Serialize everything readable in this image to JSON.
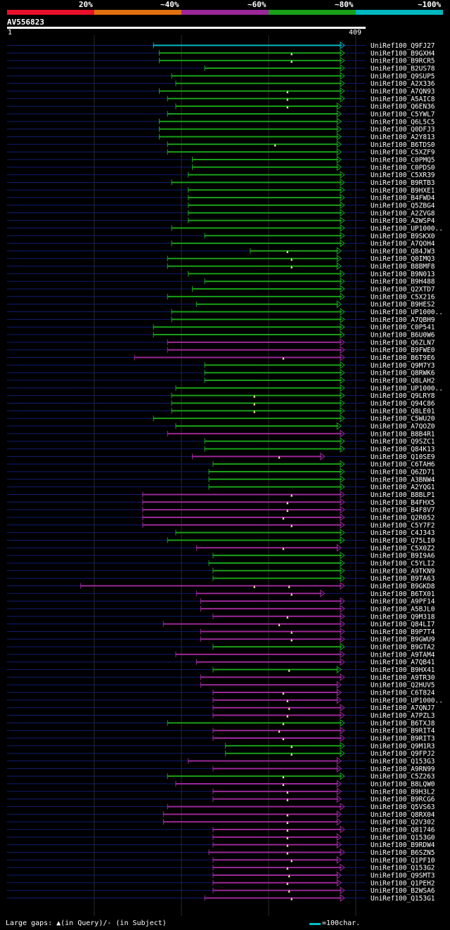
{
  "legend": {
    "labels": [
      "20%",
      "~40%",
      "~60%",
      "~80%",
      "~100%"
    ],
    "colors": [
      "#e8102a",
      "#e07010",
      "#9a2898",
      "#18a018",
      "#00b8c0"
    ]
  },
  "query": {
    "name": "AV556823",
    "start": "1",
    "end": "409"
  },
  "footer": {
    "gaps": "Large gaps: ▲(in Query)/- (in Subject)",
    "key": "=100char."
  },
  "hits": [
    {
      "name": "UniRef100_Q9FJ27",
      "s": 178,
      "e": 409,
      "c": 4,
      "m": []
    },
    {
      "name": "UniRef100_B9GXH4",
      "s": 185,
      "e": 409,
      "c": 3,
      "m": [
        345
      ]
    },
    {
      "name": "UniRef100_B9RCR5",
      "s": 185,
      "e": 409,
      "c": 3,
      "m": [
        345
      ]
    },
    {
      "name": "UniRef100_B2US78",
      "s": 240,
      "e": 409,
      "c": 3,
      "m": []
    },
    {
      "name": "UniRef100_Q9SUP5",
      "s": 200,
      "e": 409,
      "c": 3,
      "m": []
    },
    {
      "name": "UniRef100_A2X336",
      "s": 205,
      "e": 409,
      "c": 3,
      "m": []
    },
    {
      "name": "UniRef100_A7QN93",
      "s": 185,
      "e": 409,
      "c": 3,
      "m": [
        340
      ]
    },
    {
      "name": "UniRef100_A5AIC8",
      "s": 195,
      "e": 409,
      "c": 3,
      "m": [
        340
      ]
    },
    {
      "name": "UniRef100_Q6EN36",
      "s": 205,
      "e": 405,
      "c": 3,
      "m": [
        340
      ]
    },
    {
      "name": "UniRef100_C5YWL7",
      "s": 195,
      "e": 405,
      "c": 3,
      "m": []
    },
    {
      "name": "UniRef100_Q6L5C5",
      "s": 185,
      "e": 405,
      "c": 3,
      "m": []
    },
    {
      "name": "UniRef100_Q0DFJ3",
      "s": 185,
      "e": 405,
      "c": 3,
      "m": []
    },
    {
      "name": "UniRef100_A2Y813",
      "s": 185,
      "e": 405,
      "c": 3,
      "m": []
    },
    {
      "name": "UniRef100_B6TDS0",
      "s": 195,
      "e": 405,
      "c": 3,
      "m": [
        325
      ]
    },
    {
      "name": "UniRef100_C5XZF9",
      "s": 195,
      "e": 405,
      "c": 3,
      "m": []
    },
    {
      "name": "UniRef100_C0PMQ5",
      "s": 225,
      "e": 405,
      "c": 3,
      "m": []
    },
    {
      "name": "UniRef100_C0PDS0",
      "s": 225,
      "e": 405,
      "c": 3,
      "m": []
    },
    {
      "name": "UniRef100_C5XR39",
      "s": 220,
      "e": 409,
      "c": 3,
      "m": []
    },
    {
      "name": "UniRef100_B9RTB3",
      "s": 200,
      "e": 409,
      "c": 3,
      "m": []
    },
    {
      "name": "UniRef100_B9HXE1",
      "s": 220,
      "e": 409,
      "c": 3,
      "m": []
    },
    {
      "name": "UniRef100_B4FWD4",
      "s": 220,
      "e": 409,
      "c": 3,
      "m": []
    },
    {
      "name": "UniRef100_Q5ZBG4",
      "s": 220,
      "e": 409,
      "c": 3,
      "m": []
    },
    {
      "name": "UniRef100_A2ZVG8",
      "s": 220,
      "e": 409,
      "c": 3,
      "m": []
    },
    {
      "name": "UniRef100_A2WSP4",
      "s": 220,
      "e": 409,
      "c": 3,
      "m": []
    },
    {
      "name": "UniRef100_UP1000..",
      "s": 200,
      "e": 409,
      "c": 3,
      "m": []
    },
    {
      "name": "UniRef100_B9SKX0",
      "s": 240,
      "e": 409,
      "c": 3,
      "m": []
    },
    {
      "name": "UniRef100_A7QOH4",
      "s": 200,
      "e": 409,
      "c": 3,
      "m": []
    },
    {
      "name": "UniRef100_Q84JW3",
      "s": 295,
      "e": 405,
      "c": 3,
      "m": [
        340
      ]
    },
    {
      "name": "UniRef100_Q0IMQ3",
      "s": 195,
      "e": 405,
      "c": 3,
      "m": [
        345
      ]
    },
    {
      "name": "UniRef100_B8BMF8",
      "s": 195,
      "e": 405,
      "c": 3,
      "m": [
        345
      ]
    },
    {
      "name": "UniRef100_B9N013",
      "s": 220,
      "e": 409,
      "c": 3,
      "m": []
    },
    {
      "name": "UniRef100_B9H488",
      "s": 240,
      "e": 409,
      "c": 3,
      "m": []
    },
    {
      "name": "UniRef100_Q2XTD7",
      "s": 225,
      "e": 409,
      "c": 3,
      "m": []
    },
    {
      "name": "UniRef100_C5X216",
      "s": 195,
      "e": 409,
      "c": 3,
      "m": []
    },
    {
      "name": "UniRef100_B9HES2",
      "s": 230,
      "e": 405,
      "c": 3,
      "m": []
    },
    {
      "name": "UniRef100_UP1000..",
      "s": 200,
      "e": 409,
      "c": 3,
      "m": []
    },
    {
      "name": "UniRef100_A7QBH9",
      "s": 200,
      "e": 409,
      "c": 3,
      "m": []
    },
    {
      "name": "UniRef100_C0P541",
      "s": 178,
      "e": 409,
      "c": 3,
      "m": []
    },
    {
      "name": "UniRef100_B6U0W6",
      "s": 178,
      "e": 409,
      "c": 3,
      "m": []
    },
    {
      "name": "UniRef100_Q6ZLN7",
      "s": 195,
      "e": 409,
      "c": 2,
      "m": []
    },
    {
      "name": "UniRef100_B9FWE0",
      "s": 195,
      "e": 409,
      "c": 2,
      "m": []
    },
    {
      "name": "UniRef100_B6T9E6",
      "s": 155,
      "e": 409,
      "c": 2,
      "m": [
        335
      ]
    },
    {
      "name": "UniRef100_Q9M7Y3",
      "s": 240,
      "e": 409,
      "c": 3,
      "m": []
    },
    {
      "name": "UniRef100_Q8RWK6",
      "s": 240,
      "e": 409,
      "c": 3,
      "m": []
    },
    {
      "name": "UniRef100_Q8LAH2",
      "s": 240,
      "e": 409,
      "c": 3,
      "m": []
    },
    {
      "name": "UniRef100_UP1000..",
      "s": 205,
      "e": 409,
      "c": 3,
      "m": []
    },
    {
      "name": "UniRef100_Q9LRY8",
      "s": 200,
      "e": 409,
      "c": 3,
      "m": [
        300
      ]
    },
    {
      "name": "UniRef100_Q94C86",
      "s": 200,
      "e": 409,
      "c": 3,
      "m": [
        300
      ]
    },
    {
      "name": "UniRef100_Q8LE01",
      "s": 200,
      "e": 409,
      "c": 3,
      "m": [
        300
      ]
    },
    {
      "name": "UniRef100_C5WU20",
      "s": 178,
      "e": 409,
      "c": 3,
      "m": []
    },
    {
      "name": "UniRef100_A7QOZ0",
      "s": 205,
      "e": 405,
      "c": 3,
      "m": []
    },
    {
      "name": "UniRef100_B8B4R1",
      "s": 195,
      "e": 409,
      "c": 2,
      "m": []
    },
    {
      "name": "UniRef100_Q9SZC1",
      "s": 240,
      "e": 409,
      "c": 3,
      "m": []
    },
    {
      "name": "UniRef100_Q84K13",
      "s": 240,
      "e": 409,
      "c": 3,
      "m": []
    },
    {
      "name": "UniRef100_Q10SE9",
      "s": 225,
      "e": 385,
      "c": 2,
      "m": [
        330
      ]
    },
    {
      "name": "UniRef100_C6TAH6",
      "s": 250,
      "e": 409,
      "c": 3,
      "m": []
    },
    {
      "name": "UniRef100_Q6ZD71",
      "s": 245,
      "e": 409,
      "c": 3,
      "m": []
    },
    {
      "name": "UniRef100_A3BNW4",
      "s": 245,
      "e": 409,
      "c": 3,
      "m": []
    },
    {
      "name": "UniRef100_A2YQG1",
      "s": 245,
      "e": 409,
      "c": 3,
      "m": []
    },
    {
      "name": "UniRef100_B8BLP1",
      "s": 165,
      "e": 409,
      "c": 2,
      "m": [
        345
      ]
    },
    {
      "name": "UniRef100_B4FHX5",
      "s": 165,
      "e": 409,
      "c": 2,
      "m": [
        340
      ]
    },
    {
      "name": "UniRef100_B4F8V7",
      "s": 165,
      "e": 409,
      "c": 2,
      "m": [
        340
      ]
    },
    {
      "name": "UniRef100_Q2R052",
      "s": 165,
      "e": 409,
      "c": 2,
      "m": [
        335
      ]
    },
    {
      "name": "UniRef100_C5Y7F2",
      "s": 165,
      "e": 409,
      "c": 2,
      "m": [
        345
      ]
    },
    {
      "name": "UniRef100_C4J343",
      "s": 205,
      "e": 409,
      "c": 3,
      "m": []
    },
    {
      "name": "UniRef100_Q75LI0",
      "s": 195,
      "e": 409,
      "c": 3,
      "m": []
    },
    {
      "name": "UniRef100_C5X0Z2",
      "s": 230,
      "e": 405,
      "c": 2,
      "m": [
        335
      ]
    },
    {
      "name": "UniRef100_B9I9A6",
      "s": 250,
      "e": 409,
      "c": 3,
      "m": []
    },
    {
      "name": "UniRef100_C5YLI2",
      "s": 245,
      "e": 409,
      "c": 3,
      "m": []
    },
    {
      "name": "UniRef100_A9TKN9",
      "s": 250,
      "e": 409,
      "c": 3,
      "m": []
    },
    {
      "name": "UniRef100_B9TA63",
      "s": 250,
      "e": 409,
      "c": 3,
      "m": []
    },
    {
      "name": "UniRef100_B9GKD8",
      "s": 90,
      "e": 409,
      "c": 2,
      "m": [
        300,
        342
      ]
    },
    {
      "name": "UniRef100_B6TX01",
      "s": 230,
      "e": 385,
      "c": 2,
      "m": [
        345
      ]
    },
    {
      "name": "UniRef100_A9PF14",
      "s": 235,
      "e": 409,
      "c": 2,
      "m": []
    },
    {
      "name": "UniRef100_A5BJL0",
      "s": 235,
      "e": 409,
      "c": 2,
      "m": []
    },
    {
      "name": "UniRef100_Q9M318",
      "s": 250,
      "e": 409,
      "c": 2,
      "m": [
        340
      ]
    },
    {
      "name": "UniRef100_Q84LI7",
      "s": 190,
      "e": 409,
      "c": 2,
      "m": [
        330
      ]
    },
    {
      "name": "UniRef100_B9P7T4",
      "s": 235,
      "e": 409,
      "c": 2,
      "m": [
        345
      ]
    },
    {
      "name": "UniRef100_B9GWU9",
      "s": 235,
      "e": 409,
      "c": 2,
      "m": [
        345
      ]
    },
    {
      "name": "UniRef100_B9GTA2",
      "s": 250,
      "e": 409,
      "c": 3,
      "m": []
    },
    {
      "name": "UniRef100_A9TAM4",
      "s": 205,
      "e": 409,
      "c": 2,
      "m": []
    },
    {
      "name": "UniRef100_A7QB41",
      "s": 230,
      "e": 409,
      "c": 2,
      "m": []
    },
    {
      "name": "UniRef100_B9HX41",
      "s": 250,
      "e": 405,
      "c": 3,
      "m": [
        342
      ]
    },
    {
      "name": "UniRef100_A9TR30",
      "s": 235,
      "e": 409,
      "c": 2,
      "m": []
    },
    {
      "name": "UniRef100_Q2HUV5",
      "s": 235,
      "e": 405,
      "c": 2,
      "m": []
    },
    {
      "name": "UniRef100_C6T824",
      "s": 250,
      "e": 405,
      "c": 2,
      "m": [
        335
      ]
    },
    {
      "name": "UniRef100_UP1000..",
      "s": 250,
      "e": 405,
      "c": 2,
      "m": [
        340
      ]
    },
    {
      "name": "UniRef100_A7QNJ7",
      "s": 250,
      "e": 409,
      "c": 2,
      "m": [
        342
      ]
    },
    {
      "name": "UniRef100_A7PZL3",
      "s": 250,
      "e": 409,
      "c": 2,
      "m": [
        340
      ]
    },
    {
      "name": "UniRef100_B6TXJ8",
      "s": 195,
      "e": 409,
      "c": 3,
      "m": [
        335
      ]
    },
    {
      "name": "UniRef100_B9RIT4",
      "s": 250,
      "e": 409,
      "c": 2,
      "m": [
        330
      ]
    },
    {
      "name": "UniRef100_B9RIT3",
      "s": 250,
      "e": 409,
      "c": 2,
      "m": [
        335
      ]
    },
    {
      "name": "UniRef100_Q9M1R3",
      "s": 265,
      "e": 409,
      "c": 3,
      "m": [
        345
      ]
    },
    {
      "name": "UniRef100_Q9FPJ2",
      "s": 265,
      "e": 409,
      "c": 3,
      "m": [
        345
      ]
    },
    {
      "name": "UniRef100_Q153G3",
      "s": 220,
      "e": 405,
      "c": 2,
      "m": []
    },
    {
      "name": "UniRef100_A9RN99",
      "s": 250,
      "e": 405,
      "c": 2,
      "m": []
    },
    {
      "name": "UniRef100_C5Z263",
      "s": 195,
      "e": 409,
      "c": 3,
      "m": [
        335
      ]
    },
    {
      "name": "UniRef100_B8LQW0",
      "s": 205,
      "e": 405,
      "c": 2,
      "m": [
        335
      ]
    },
    {
      "name": "UniRef100_B9H3L2",
      "s": 250,
      "e": 405,
      "c": 2,
      "m": [
        340
      ]
    },
    {
      "name": "UniRef100_B9RCG6",
      "s": 250,
      "e": 405,
      "c": 2,
      "m": [
        340
      ]
    },
    {
      "name": "UniRef100_Q5VS63",
      "s": 195,
      "e": 409,
      "c": 2,
      "m": []
    },
    {
      "name": "UniRef100_Q8RX04",
      "s": 190,
      "e": 405,
      "c": 2,
      "m": [
        340
      ]
    },
    {
      "name": "UniRef100_Q2V302",
      "s": 190,
      "e": 405,
      "c": 2,
      "m": [
        340
      ]
    },
    {
      "name": "UniRef100_Q81746",
      "s": 250,
      "e": 409,
      "c": 2,
      "m": [
        340
      ]
    },
    {
      "name": "UniRef100_Q153G0",
      "s": 250,
      "e": 405,
      "c": 2,
      "m": [
        340
      ]
    },
    {
      "name": "UniRef100_B9RDW4",
      "s": 250,
      "e": 405,
      "c": 2,
      "m": [
        340
      ]
    },
    {
      "name": "UniRef100_B6SZN5",
      "s": 245,
      "e": 409,
      "c": 2,
      "m": [
        340
      ]
    },
    {
      "name": "UniRef100_Q1PF10",
      "s": 250,
      "e": 405,
      "c": 2,
      "m": [
        345
      ]
    },
    {
      "name": "UniRef100_Q153G2",
      "s": 250,
      "e": 409,
      "c": 2,
      "m": [
        340
      ]
    },
    {
      "name": "UniRef100_Q9SMT3",
      "s": 250,
      "e": 405,
      "c": 2,
      "m": [
        342
      ]
    },
    {
      "name": "UniRef100_Q1PEH2",
      "s": 250,
      "e": 405,
      "c": 2,
      "m": [
        340
      ]
    },
    {
      "name": "UniRef100_B2WSA6",
      "s": 250,
      "e": 409,
      "c": 2,
      "m": [
        342
      ]
    },
    {
      "name": "UniRef100_Q153G1",
      "s": 240,
      "e": 409,
      "c": 2,
      "m": [
        345
      ]
    }
  ]
}
